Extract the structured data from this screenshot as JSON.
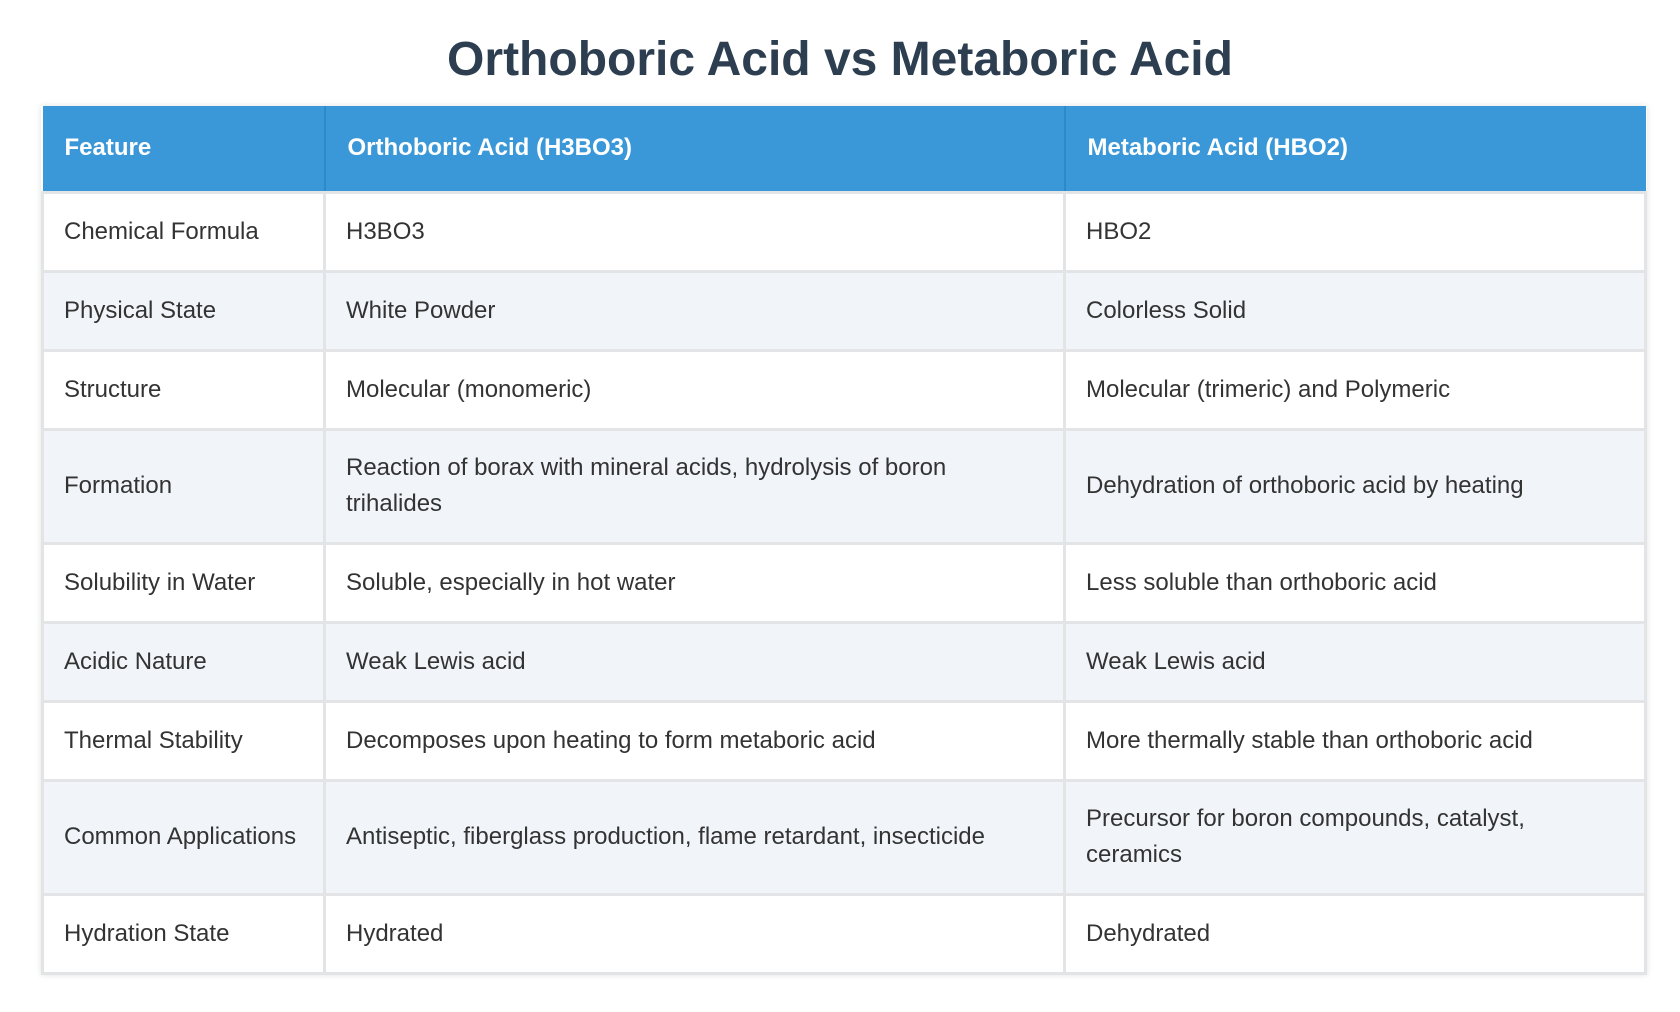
{
  "title": "Orthoboric Acid vs Metaboric Acid",
  "table": {
    "headers": [
      "Feature",
      "Orthoboric Acid (H3BO3)",
      "Metaboric Acid (HBO2)"
    ],
    "rows": [
      [
        "Chemical Formula",
        "H3BO3",
        "HBO2"
      ],
      [
        "Physical State",
        "White Powder",
        "Colorless Solid"
      ],
      [
        "Structure",
        "Molecular (monomeric)",
        "Molecular (trimeric) and Polymeric"
      ],
      [
        "Formation",
        "Reaction of borax with mineral acids, hydrolysis of boron trihalides",
        "Dehydration of orthoboric acid by heating"
      ],
      [
        "Solubility in Water",
        "Soluble, especially in hot water",
        "Less soluble than orthoboric acid"
      ],
      [
        "Acidic Nature",
        "Weak Lewis acid",
        "Weak Lewis acid"
      ],
      [
        "Thermal Stability",
        "Decomposes upon heating to form metaboric acid",
        "More thermally stable than orthoboric acid"
      ],
      [
        "Common Applications",
        "Antiseptic, fiberglass production, flame retardant, insecticide",
        "Precursor for boron compounds, catalyst, ceramics"
      ],
      [
        "Hydration State",
        "Hydrated",
        "Dehydrated"
      ]
    ]
  },
  "colors": {
    "title": "#2c3e50",
    "header_bg": "#3a98d8",
    "header_text": "#ffffff",
    "row_alt_bg": "#f1f5f9",
    "border": "#e2e4e6"
  }
}
